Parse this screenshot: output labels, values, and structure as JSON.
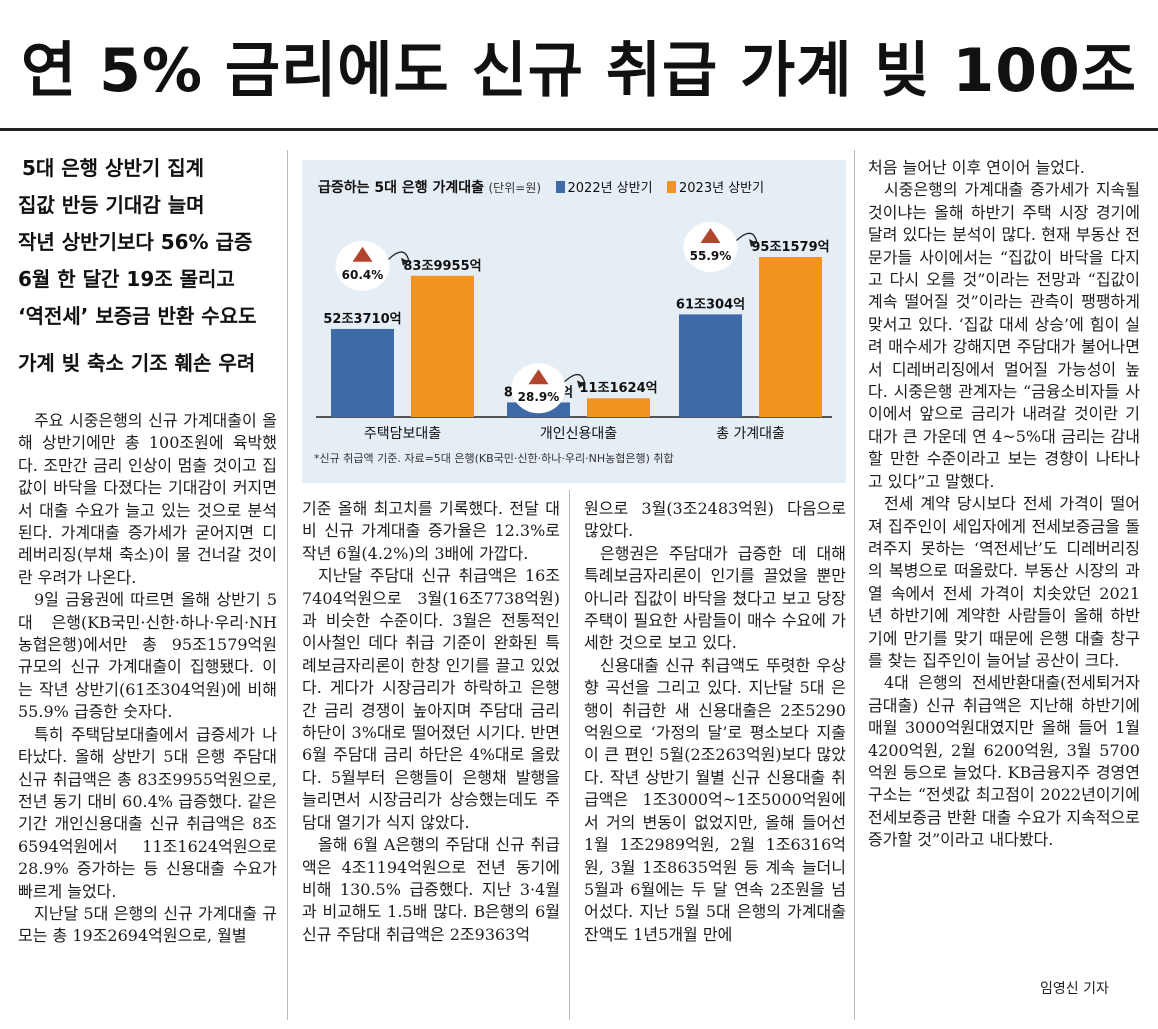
{
  "headline": "연 5% 금리에도 신규 취급 가계 빚 100조",
  "subheads": [
    "5대 은행 상반기 집계",
    "집값 반등 기대감 늘며",
    "작년 상반기보다 56% 급증",
    "6월 한 달간 19조 몰리고",
    "‘역전세’ 보증금 반환 수요도",
    "가계 빚 축소 기조 훼손 우려"
  ],
  "column1": [
    "주요 시중은행의 신규 가계대출이 올해 상반기에만 총 100조원에 육박했다. 조만간 금리 인상이 멈출 것이고 집값이 바닥을 다졌다는 기대감이 커지면서 대출 수요가 늘고 있는 것으로 분석된다. 가계대출 증가세가 굳어지면 디레버리징(부채 축소)이 물 건너갈 것이란 우려가 나온다.",
    "9일 금융권에 따르면 올해 상반기 5대 은행(KB국민·신한·하나·우리·NH농협은행)에서만 총 95조1579억원 규모의 신규 가계대출이 집행됐다. 이는 작년 상반기(61조304억원)에 비해 55.9% 급증한 숫자다.",
    "특히 주택담보대출에서 급증세가 나타났다. 올해 상반기 5대 은행 주담대 신규 취급액은 총 83조9955억원으로, 전년 동기 대비 60.4% 급증했다. 같은 기간 개인신용대출 신규 취급액은 8조6594억원에서 11조1624억원으로 28.9% 증가하는 등 신용대출 수요가 빠르게 늘었다.",
    "지난달 5대 은행의 신규 가계대출 규모는 총 19조2694억원으로, 월별"
  ],
  "column2": [
    "기준 올해 최고치를 기록했다. 전달 대비 신규 가계대출 증가율은 12.3%로 작년 6월(4.2%)의 3배에 가깝다.",
    "지난달 주담대 신규 취급액은 16조7404억원으로 3월(16조7738억원)과 비슷한 수준이다. 3월은 전통적인 이사철인 데다 취급 기준이 완화된 특례보금자리론이 한창 인기를 끌고 있었다. 게다가 시장금리가 하락하고 은행 간 금리 경쟁이 높아지며 주담대 금리 하단이 3%대로 떨어졌던 시기다. 반면 6월 주담대 금리 하단은 4%대로 올랐다. 5월부터 은행들이 은행채 발행을 늘리면서 시장금리가 상승했는데도 주담대 열기가 식지 않았다.",
    "올해 6월 A은행의 주담대 신규 취급액은 4조1194억원으로 전년 동기에 비해 130.5% 급증했다. 지난 3·4월과 비교해도 1.5배 많다. B은행의 6월 신규 주담대 취급액은 2조9363억"
  ],
  "column3": [
    "원으로 3월(3조2483억원) 다음으로 많았다.",
    "은행권은 주담대가 급증한 데 대해 특례보금자리론이 인기를 끌었을 뿐만 아니라 집값이 바닥을 쳤다고 보고 당장 주택이 필요한 사람들이 매수 수요에 가세한 것으로 보고 있다.",
    "신용대출 신규 취급액도 뚜렷한 우상향 곡선을 그리고 있다. 지난달 5대 은행이 취급한 새 신용대출은 2조5290억원으로 ‘가정의 달’로 평소보다 지출이 큰 편인 5월(2조263억원)보다 많았다. 작년 상반기 월별 신규 신용대출 취급액은 1조3000억~1조5000억원에서 거의 변동이 없었지만, 올해 들어선 1월 1조2989억원, 2월 1조6316억원, 3월 1조8635억원 등 계속 늘더니 5월과 6월에는 두 달 연속 2조원을 넘어섰다. 지난 5월 5대 은행의 가계대출 잔액도 1년5개월 만에"
  ],
  "column4": [
    "처음 늘어난 이후 연이어 늘었다.",
    "시중은행의 가계대출 증가세가 지속될 것이냐는 올해 하반기 주택 시장 경기에 달려 있다는 분석이 많다. 현재 부동산 전문가들 사이에서는 “집값이 바닥을 다지고 다시 오를 것”이라는 전망과 “집값이 계속 떨어질 것”이라는 관측이 팽팽하게 맞서고 있다. ‘집값 대세 상승’에 힘이 실려 매수세가 강해지면 주담대가 불어나면서 디레버리징에서 멀어질 가능성이 높다. 시중은행 관계자는 “금융소비자들 사이에서 앞으로 금리가 내려갈 것이란 기대가 큰 가운데 연 4~5%대 금리는 감내할 만한 수준이라고 보는 경향이 나타나고 있다”고 말했다.",
    "전세 계약 당시보다 전세 가격이 떨어져 집주인이 세입자에게 전세보증금을 돌려주지 못하는 ‘역전세난’도 디레버리징의 복병으로 떠올랐다. 부동산 시장의 과열 속에서 전세 가격이 치솟았던 2021년 하반기에 계약한 사람들이 올해 하반기에 만기를 맞기 때문에 은행 대출 창구를 찾는 집주인이 늘어날 공산이 크다.",
    "4대 은행의 전세반환대출(전세퇴거자금대출) 신규 취급액은 지난해 하반기에 매월 3000억원대였지만 올해 들어 1월 4200억원, 2월 6200억원, 3월 5700억원 등으로 늘었다. KB금융지주 경영연구소는 “전셋값 최고점이 2022년이기에 전세보증금 반환 대출 수요가 지속적으로 증가할 것”이라고 내다봤다."
  ],
  "byline": "임영신 기자",
  "chart_data": {
    "type": "bar",
    "title": "급증하는 5대 은행 가계대출",
    "unit": "(단위=원)",
    "categories": [
      "주택담보대출",
      "개인신용대출",
      "총 가계대출"
    ],
    "series": [
      {
        "name": "2022년 상반기",
        "values": [
          52.371,
          8.6594,
          61.0304
        ],
        "labels": [
          "52조3710억",
          "8조6594억",
          "61조304억"
        ]
      },
      {
        "name": "2023년 상반기",
        "values": [
          83.9955,
          11.1624,
          95.1579
        ],
        "labels": [
          "83조9955억",
          "11조1624억",
          "95조1579억"
        ]
      }
    ],
    "growth_labels": [
      "60.4%",
      "28.9%",
      "55.9%"
    ],
    "ylim": [
      0,
      100
    ],
    "note": "*신규 취급액 기준. 자료=5대 은행(KB국민·신한·하나·우리·NH농협은행) 취합",
    "colors": {
      "2022": "#3f6aa8",
      "2023": "#f29322",
      "box": "#e6eef5",
      "arrow": "#b0442c"
    }
  }
}
